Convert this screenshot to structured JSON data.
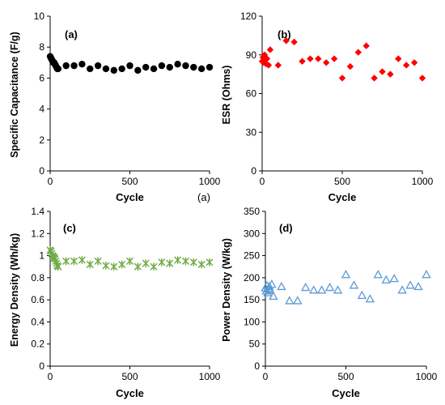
{
  "chart_data": [
    {
      "type": "scatter",
      "panel_label": "(a)",
      "xlabel": "Cycle",
      "ylabel": "Specific Capacitance (F/g)",
      "xlim": [
        0,
        1000
      ],
      "ylim": [
        0,
        10
      ],
      "xticks": [
        "0",
        "500",
        "1000"
      ],
      "yticks": [
        "0",
        "2",
        "4",
        "6",
        "8",
        "10"
      ],
      "marker": "circle",
      "color": "#000000",
      "grid": false,
      "x": [
        0,
        5,
        10,
        15,
        20,
        25,
        30,
        35,
        40,
        45,
        50,
        100,
        150,
        200,
        250,
        300,
        350,
        400,
        450,
        500,
        550,
        600,
        650,
        700,
        750,
        800,
        850,
        900,
        950,
        1000
      ],
      "y": [
        7.4,
        7.3,
        7.2,
        7.1,
        7.0,
        7.0,
        6.9,
        6.8,
        6.7,
        6.6,
        6.6,
        6.8,
        6.8,
        6.9,
        6.6,
        6.8,
        6.6,
        6.5,
        6.6,
        6.8,
        6.5,
        6.7,
        6.6,
        6.8,
        6.7,
        6.9,
        6.8,
        6.7,
        6.6,
        6.7
      ]
    },
    {
      "type": "scatter",
      "panel_label": "(b)",
      "xlabel": "Cycle",
      "ylabel": "ESR (Ohms)",
      "xlim": [
        0,
        1000
      ],
      "ylim": [
        0,
        120
      ],
      "xticks": [
        "0",
        "500",
        "1000"
      ],
      "yticks": [
        "0",
        "30",
        "60",
        "90",
        "120"
      ],
      "marker": "diamond",
      "color": "#ff0000",
      "grid": false,
      "x": [
        0,
        5,
        10,
        15,
        20,
        25,
        30,
        40,
        50,
        100,
        150,
        200,
        250,
        300,
        350,
        400,
        450,
        500,
        550,
        600,
        650,
        700,
        750,
        800,
        850,
        900,
        950,
        1000
      ],
      "y": [
        85,
        88,
        84,
        90,
        86,
        83,
        87,
        82,
        94,
        82,
        101,
        100,
        85,
        87,
        87,
        84,
        87,
        72,
        81,
        92,
        97,
        72,
        77,
        75,
        87,
        82,
        84,
        72
      ]
    },
    {
      "type": "scatter",
      "panel_label": "(c)",
      "xlabel": "Cycle",
      "ylabel": "Energy Density (Wh/kg)",
      "xlim": [
        0,
        1000
      ],
      "ylim": [
        0,
        1.4
      ],
      "xticks": [
        "0",
        "500",
        "1000"
      ],
      "yticks": [
        "0",
        "0.2",
        "0.4",
        "0.6",
        "0.8",
        "1",
        "1.2",
        "1.4"
      ],
      "marker": "x-star",
      "color": "#70ad47",
      "grid": false,
      "x": [
        0,
        5,
        10,
        15,
        20,
        25,
        30,
        35,
        40,
        45,
        50,
        100,
        150,
        200,
        250,
        300,
        350,
        400,
        450,
        500,
        550,
        600,
        650,
        700,
        750,
        800,
        850,
        900,
        950,
        1000
      ],
      "y": [
        1.05,
        1.04,
        1.02,
        1.0,
        0.99,
        0.98,
        0.97,
        0.95,
        0.93,
        0.91,
        0.9,
        0.95,
        0.95,
        0.96,
        0.92,
        0.95,
        0.91,
        0.9,
        0.92,
        0.95,
        0.9,
        0.93,
        0.9,
        0.94,
        0.93,
        0.96,
        0.95,
        0.94,
        0.92,
        0.94
      ]
    },
    {
      "type": "scatter",
      "panel_label": "(d)",
      "xlabel": "Cycle",
      "ylabel": "Power Density (W/kg)",
      "xlim": [
        0,
        1000
      ],
      "ylim": [
        0,
        350
      ],
      "xticks": [
        "0",
        "500",
        "1000"
      ],
      "yticks": [
        "0",
        "50",
        "100",
        "150",
        "200",
        "250",
        "300",
        "350"
      ],
      "marker": "triangle-open",
      "color": "#5b9bd5",
      "grid": false,
      "x": [
        0,
        5,
        10,
        15,
        20,
        25,
        30,
        40,
        50,
        100,
        150,
        200,
        250,
        300,
        350,
        400,
        450,
        500,
        550,
        600,
        650,
        700,
        750,
        800,
        850,
        900,
        950,
        1000
      ],
      "y": [
        177,
        170,
        182,
        166,
        175,
        180,
        172,
        185,
        158,
        180,
        148,
        148,
        178,
        172,
        172,
        178,
        172,
        207,
        183,
        160,
        152,
        207,
        195,
        198,
        172,
        183,
        180,
        207
      ]
    }
  ],
  "stray_label": "(a)"
}
